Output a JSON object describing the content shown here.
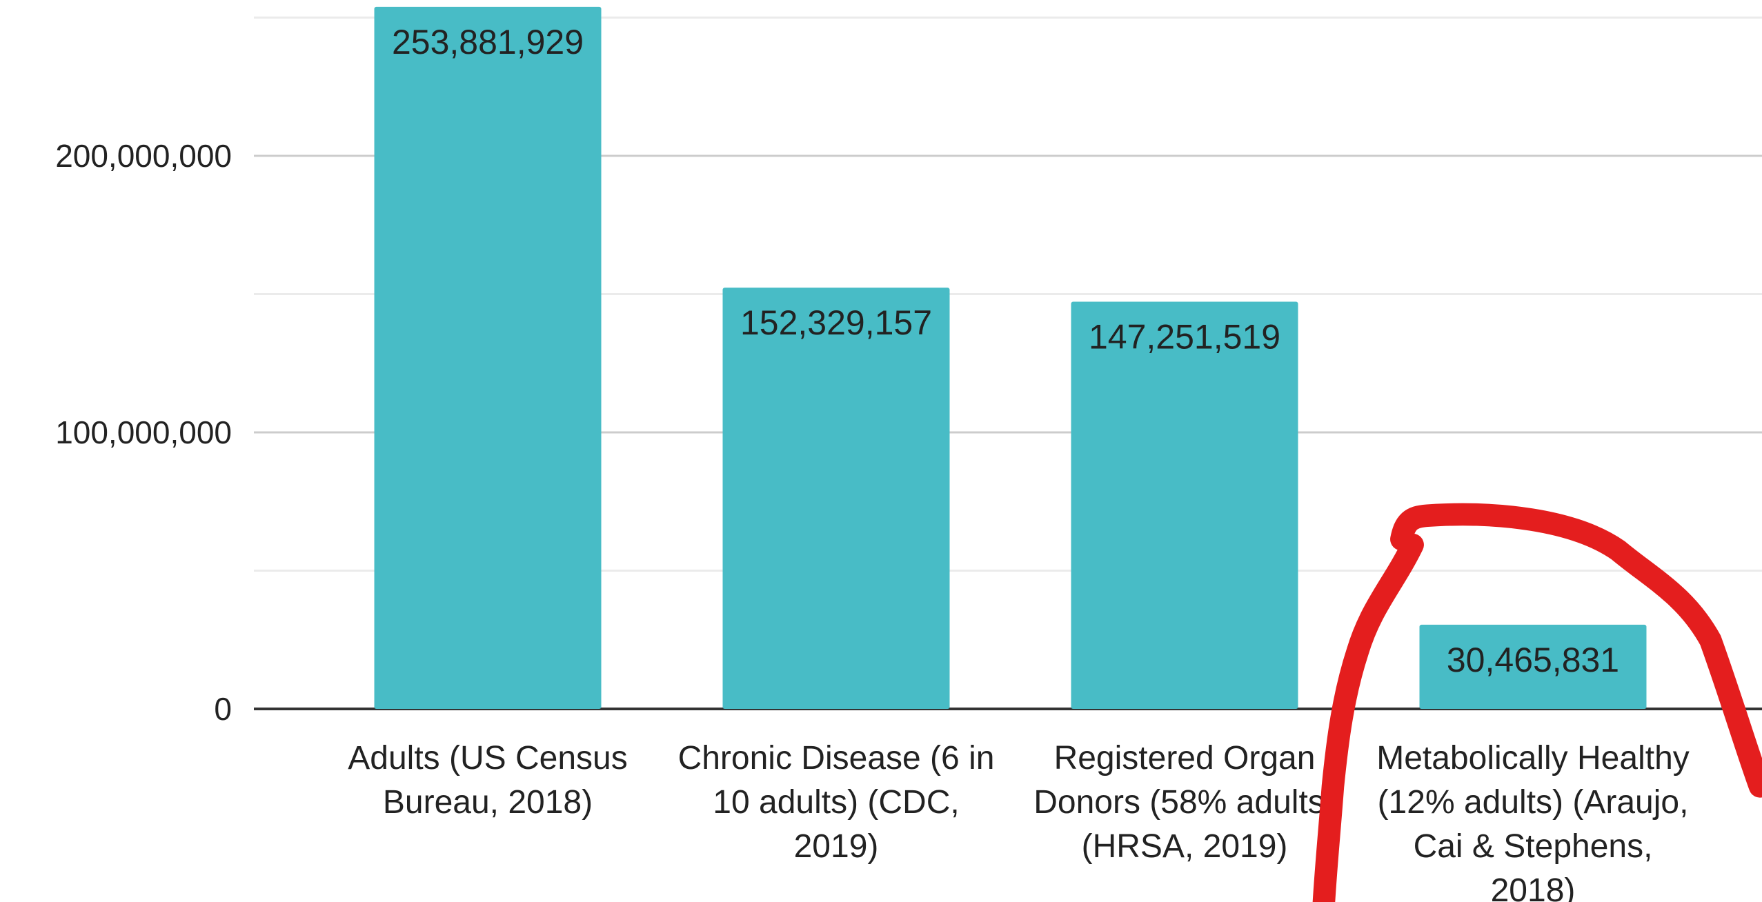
{
  "chart_data": {
    "type": "bar",
    "categories": [
      "Adults (US Census Bureau, 2018)",
      "Chronic Disease (6 in 10 adults) (CDC, 2019)",
      "Registered Organ Donors (58% adults) (HRSA, 2019)",
      "Metabolically Healthy (12% adults) (Araujo, Cai & Stephens, 2018)"
    ],
    "values": [
      253881929,
      152329157,
      147251519,
      30465831
    ],
    "value_labels": [
      "253,881,929",
      "152,329,157",
      "147,251,519",
      "30,465,831"
    ],
    "color": "#48bcc6",
    "ylim": [
      0,
      250000000
    ],
    "yticks": [
      {
        "value": 0,
        "label": "0"
      },
      {
        "value": 100000000,
        "label": "100,000,000"
      },
      {
        "value": 200000000,
        "label": "200,000,000"
      }
    ],
    "minor_yticks": [
      50000000,
      150000000,
      250000000
    ],
    "grid": true
  }
}
